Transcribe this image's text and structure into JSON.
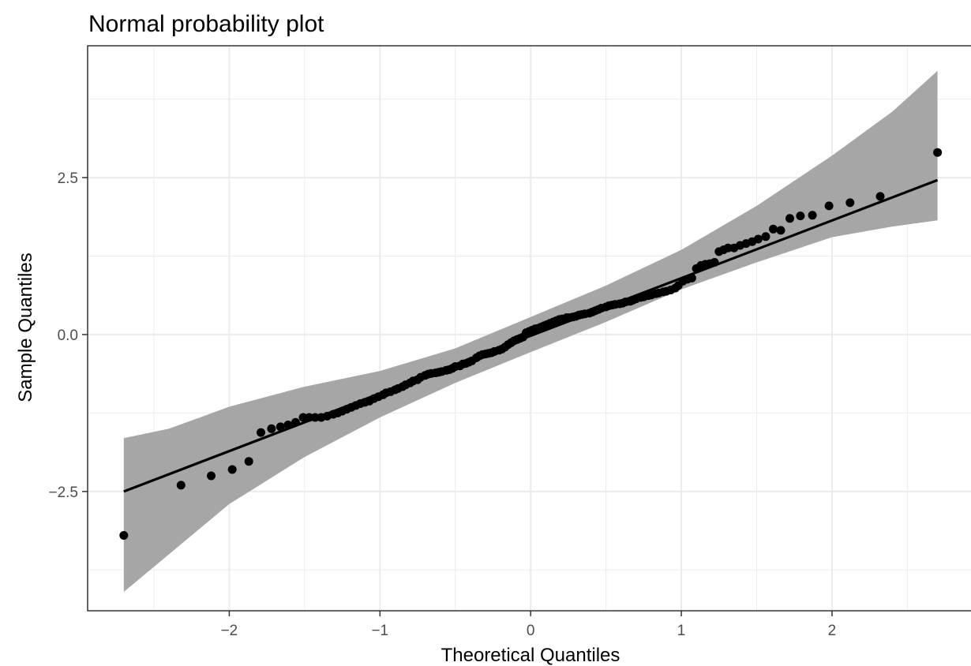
{
  "chart_data": {
    "type": "scatter",
    "title": "Normal probability plot",
    "xlabel": "Theoretical Quantiles",
    "ylabel": "Sample Quantiles",
    "xlim": [
      -2.94,
      2.98
    ],
    "ylim": [
      -4.4,
      4.6
    ],
    "x_major_ticks": [
      -2,
      -1,
      0,
      1,
      2
    ],
    "x_tick_labels": [
      "−2",
      "−1",
      "0",
      "1",
      "2"
    ],
    "x_minor_ticks": [
      -2.5,
      -1.5,
      -0.5,
      0.5,
      1.5,
      2.5
    ],
    "y_major_ticks": [
      -2.5,
      0.0,
      2.5
    ],
    "y_tick_labels": [
      "−2.5",
      "0.0",
      "2.5"
    ],
    "y_minor_ticks": [
      -3.75,
      -1.25,
      1.25,
      3.75
    ],
    "grid": true,
    "legend": "none",
    "colors": {
      "points": "#000000",
      "line": "#000000",
      "band": "#a6a6a6",
      "grid": "#ebebeb",
      "panel_border": "#333333"
    },
    "reference_line": {
      "x": [
        -2.7,
        2.7
      ],
      "y": [
        -2.5,
        2.46
      ]
    },
    "confidence_band": {
      "x": [
        -2.7,
        -2.4,
        -2.0,
        -1.5,
        -1.0,
        -0.5,
        0.0,
        0.5,
        1.0,
        1.5,
        2.0,
        2.4,
        2.7
      ],
      "upper": [
        -1.65,
        -1.5,
        -1.15,
        -0.83,
        -0.58,
        -0.22,
        0.28,
        0.78,
        1.35,
        2.05,
        2.85,
        3.55,
        4.2
      ],
      "lower": [
        -4.1,
        -3.5,
        -2.7,
        -1.95,
        -1.32,
        -0.77,
        -0.28,
        0.2,
        0.72,
        1.15,
        1.55,
        1.72,
        1.82
      ]
    },
    "points": {
      "x": [
        -2.7,
        -2.32,
        -2.12,
        -1.98,
        -1.87,
        -1.79,
        -1.72,
        -1.66,
        -1.61,
        -1.56,
        -1.51,
        -1.47,
        -1.43,
        -1.39,
        -1.35,
        -1.31,
        -1.28,
        -1.25,
        -1.22,
        -1.19,
        -1.16,
        -1.13,
        -1.1,
        -1.07,
        -1.04,
        -1.01,
        -0.98,
        -0.96,
        -0.93,
        -0.9,
        -0.88,
        -0.85,
        -0.83,
        -0.8,
        -0.78,
        -0.75,
        -0.73,
        -0.7,
        -0.68,
        -0.66,
        -0.63,
        -0.61,
        -0.59,
        -0.56,
        -0.54,
        -0.52,
        -0.5,
        -0.47,
        -0.45,
        -0.43,
        -0.41,
        -0.39,
        -0.36,
        -0.34,
        -0.32,
        -0.3,
        -0.28,
        -0.26,
        -0.24,
        -0.21,
        -0.19,
        -0.17,
        -0.15,
        -0.13,
        -0.11,
        -0.09,
        -0.07,
        -0.05,
        -0.03,
        -0.01,
        0.01,
        0.03,
        0.05,
        0.07,
        0.09,
        0.11,
        0.13,
        0.15,
        0.17,
        0.19,
        0.21,
        0.24,
        0.26,
        0.28,
        0.3,
        0.32,
        0.34,
        0.36,
        0.39,
        0.41,
        0.43,
        0.45,
        0.47,
        0.5,
        0.52,
        0.54,
        0.56,
        0.59,
        0.61,
        0.63,
        0.66,
        0.68,
        0.7,
        0.73,
        0.75,
        0.78,
        0.8,
        0.83,
        0.85,
        0.88,
        0.9,
        0.93,
        0.96,
        0.98,
        1.01,
        1.04,
        1.07,
        1.1,
        1.13,
        1.16,
        1.19,
        1.22,
        1.25,
        1.28,
        1.31,
        1.35,
        1.39,
        1.43,
        1.47,
        1.51,
        1.56,
        1.61,
        1.66,
        1.72,
        1.79,
        1.87,
        1.98,
        2.12,
        2.32,
        2.7
      ],
      "y": [
        -3.2,
        -2.4,
        -2.25,
        -2.15,
        -2.02,
        -1.56,
        -1.5,
        -1.47,
        -1.44,
        -1.4,
        -1.32,
        -1.32,
        -1.32,
        -1.32,
        -1.3,
        -1.27,
        -1.25,
        -1.22,
        -1.19,
        -1.16,
        -1.13,
        -1.1,
        -1.08,
        -1.06,
        -1.02,
        -0.99,
        -0.96,
        -0.93,
        -0.91,
        -0.88,
        -0.86,
        -0.83,
        -0.8,
        -0.77,
        -0.74,
        -0.72,
        -0.68,
        -0.65,
        -0.63,
        -0.62,
        -0.61,
        -0.6,
        -0.59,
        -0.57,
        -0.56,
        -0.54,
        -0.51,
        -0.5,
        -0.47,
        -0.46,
        -0.44,
        -0.42,
        -0.37,
        -0.34,
        -0.32,
        -0.31,
        -0.3,
        -0.29,
        -0.27,
        -0.25,
        -0.23,
        -0.2,
        -0.16,
        -0.13,
        -0.1,
        -0.08,
        -0.06,
        -0.04,
        0.03,
        0.05,
        0.07,
        0.09,
        0.1,
        0.12,
        0.14,
        0.16,
        0.18,
        0.2,
        0.22,
        0.24,
        0.25,
        0.27,
        0.27,
        0.28,
        0.29,
        0.31,
        0.32,
        0.33,
        0.34,
        0.36,
        0.38,
        0.4,
        0.42,
        0.44,
        0.46,
        0.47,
        0.48,
        0.49,
        0.5,
        0.52,
        0.53,
        0.55,
        0.57,
        0.59,
        0.6,
        0.62,
        0.63,
        0.65,
        0.66,
        0.68,
        0.69,
        0.71,
        0.74,
        0.78,
        0.85,
        0.88,
        0.9,
        1.05,
        1.1,
        1.12,
        1.13,
        1.15,
        1.32,
        1.35,
        1.38,
        1.38,
        1.42,
        1.45,
        1.48,
        1.52,
        1.56,
        1.68,
        1.66,
        1.85,
        1.89,
        1.9,
        2.05,
        2.1,
        2.2,
        2.9
      ]
    }
  }
}
